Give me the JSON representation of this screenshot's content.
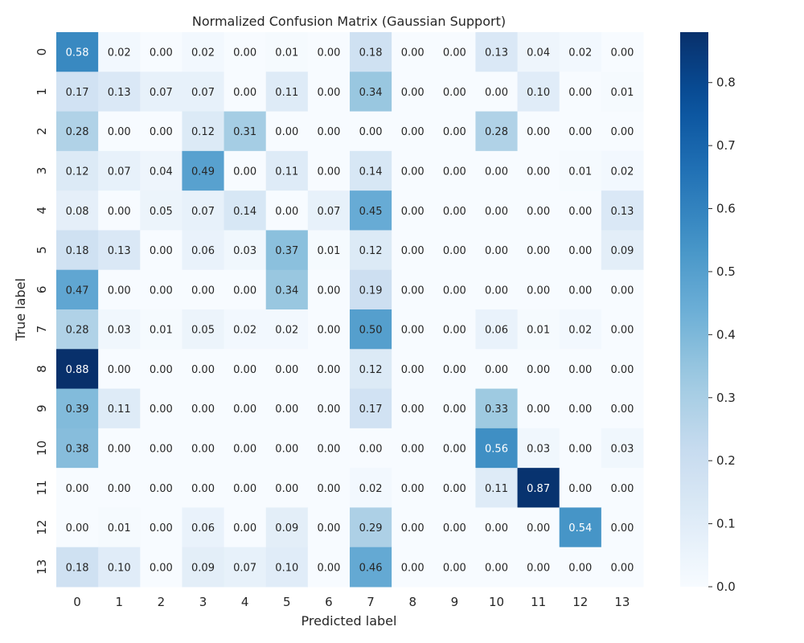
{
  "chart_data": {
    "type": "heatmap",
    "title": "Normalized Confusion Matrix (Gaussian Support)",
    "xlabel": "Predicted label",
    "ylabel": "True label",
    "x_categories": [
      "0",
      "1",
      "2",
      "3",
      "4",
      "5",
      "6",
      "7",
      "8",
      "9",
      "10",
      "11",
      "12",
      "13"
    ],
    "y_categories": [
      "0",
      "1",
      "2",
      "3",
      "4",
      "5",
      "6",
      "7",
      "8",
      "9",
      "10",
      "11",
      "12",
      "13"
    ],
    "values": [
      [
        0.58,
        0.02,
        0.0,
        0.02,
        0.0,
        0.01,
        0.0,
        0.18,
        0.0,
        0.0,
        0.13,
        0.04,
        0.02,
        0.0
      ],
      [
        0.17,
        0.13,
        0.07,
        0.07,
        0.0,
        0.11,
        0.0,
        0.34,
        0.0,
        0.0,
        0.0,
        0.1,
        0.0,
        0.01
      ],
      [
        0.28,
        0.0,
        0.0,
        0.12,
        0.31,
        0.0,
        0.0,
        0.0,
        0.0,
        0.0,
        0.28,
        0.0,
        0.0,
        0.0
      ],
      [
        0.12,
        0.07,
        0.04,
        0.49,
        0.0,
        0.11,
        0.0,
        0.14,
        0.0,
        0.0,
        0.0,
        0.0,
        0.01,
        0.02
      ],
      [
        0.08,
        0.0,
        0.05,
        0.07,
        0.14,
        0.0,
        0.07,
        0.45,
        0.0,
        0.0,
        0.0,
        0.0,
        0.0,
        0.13
      ],
      [
        0.18,
        0.13,
        0.0,
        0.06,
        0.03,
        0.37,
        0.01,
        0.12,
        0.0,
        0.0,
        0.0,
        0.0,
        0.0,
        0.09
      ],
      [
        0.47,
        0.0,
        0.0,
        0.0,
        0.0,
        0.34,
        0.0,
        0.19,
        0.0,
        0.0,
        0.0,
        0.0,
        0.0,
        0.0
      ],
      [
        0.28,
        0.03,
        0.01,
        0.05,
        0.02,
        0.02,
        0.0,
        0.5,
        0.0,
        0.0,
        0.06,
        0.01,
        0.02,
        0.0
      ],
      [
        0.88,
        0.0,
        0.0,
        0.0,
        0.0,
        0.0,
        0.0,
        0.12,
        0.0,
        0.0,
        0.0,
        0.0,
        0.0,
        0.0
      ],
      [
        0.39,
        0.11,
        0.0,
        0.0,
        0.0,
        0.0,
        0.0,
        0.17,
        0.0,
        0.0,
        0.33,
        0.0,
        0.0,
        0.0
      ],
      [
        0.38,
        0.0,
        0.0,
        0.0,
        0.0,
        0.0,
        0.0,
        0.0,
        0.0,
        0.0,
        0.56,
        0.03,
        0.0,
        0.03
      ],
      [
        0.0,
        0.0,
        0.0,
        0.0,
        0.0,
        0.0,
        0.0,
        0.02,
        0.0,
        0.0,
        0.11,
        0.87,
        0.0,
        0.0
      ],
      [
        0.0,
        0.01,
        0.0,
        0.06,
        0.0,
        0.09,
        0.0,
        0.29,
        0.0,
        0.0,
        0.0,
        0.0,
        0.54,
        0.0
      ],
      [
        0.18,
        0.1,
        0.0,
        0.09,
        0.07,
        0.1,
        0.0,
        0.46,
        0.0,
        0.0,
        0.0,
        0.0,
        0.0,
        0.0
      ]
    ],
    "colormap": "Blues",
    "vmin": 0.0,
    "vmax": 0.88,
    "colorbar_ticks": [
      0.0,
      0.1,
      0.2,
      0.3,
      0.4,
      0.5,
      0.6,
      0.7,
      0.8
    ],
    "colorbar_tick_labels": [
      "0.0",
      "0.1",
      "0.2",
      "0.3",
      "0.4",
      "0.5",
      "0.6",
      "0.7",
      "0.8"
    ],
    "colorbar_position": "right",
    "grid": false
  }
}
